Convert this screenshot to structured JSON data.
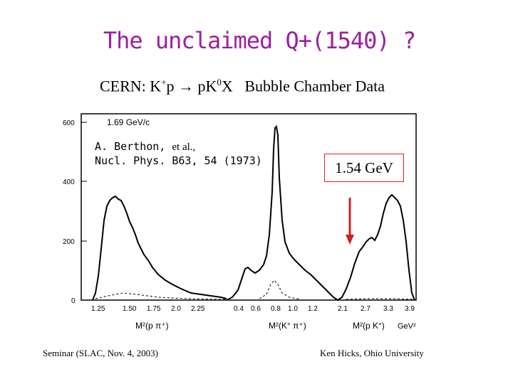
{
  "title": "The unclaimed Q+(1540) ?",
  "subtitle": {
    "prefix": "CERN: K",
    "sup1": "+",
    "mid": "p → pK",
    "sup2": "0",
    "suffix": "X",
    "label": "Bubble Chamber Data"
  },
  "plot": {
    "momentum": "1.69  GeV/c",
    "y_ticks": [
      "600",
      "400",
      "200",
      "0"
    ],
    "panel1_ticks": [
      "1.25",
      "1.50",
      "1.75",
      "2.0",
      "2.25"
    ],
    "panel2_ticks": [
      "0.4",
      "0.6",
      "0.8",
      "1.0",
      "1.2"
    ],
    "panel3_ticks": [
      "2.1",
      "2.7",
      "3.3",
      "3.9"
    ],
    "xlabel1": "M²(p π⁺)",
    "xlabel2": "M²(K° π⁺)",
    "xlabel3": "M²(p K°)",
    "unit": "GeV²"
  },
  "citation": {
    "line1_a": "A.  Berthon, ",
    "line1_b": "et al.,",
    "line2": "Nucl. Phys. B63, 54 (1973)"
  },
  "highlight": {
    "label": "1.54 GeV",
    "arrow_color": "#cc2222"
  },
  "footer": {
    "left": "Seminar (SLAC, Nov. 4, 2003)",
    "right": "Ken Hicks, Ohio University"
  },
  "colors": {
    "title": "#9b1fa0",
    "accent": "#cc2222"
  }
}
